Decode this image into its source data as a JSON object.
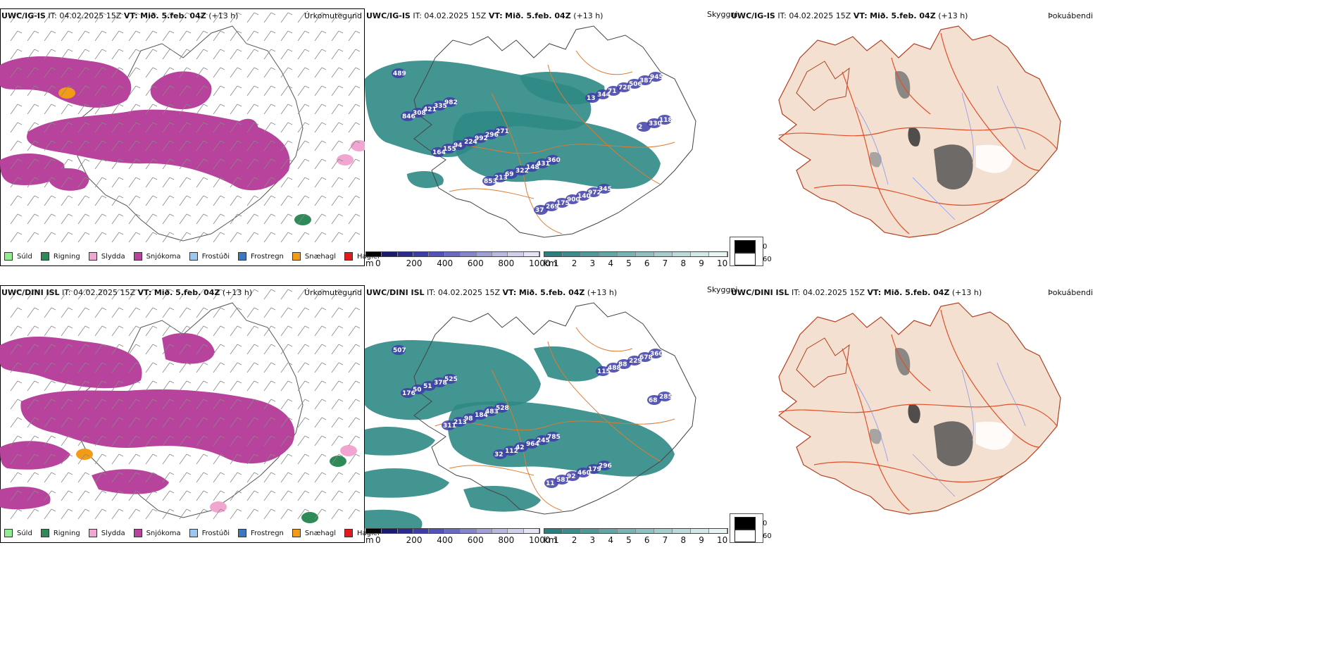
{
  "rows": [
    {
      "model": "UWC/IG-IS",
      "init": "IT: 04.02.2025 15Z",
      "vt_label": "VT:",
      "vt_value": "Mið. 5.feb. 04Z",
      "lead": "(+13 h)",
      "snow_labels": [
        "489",
        "982",
        "271",
        "360",
        "345",
        "945",
        "335",
        "296",
        "431",
        "972",
        "387",
        "421",
        "992",
        "148",
        "140",
        "506",
        "308",
        "224",
        "322",
        "900",
        "728",
        "846",
        "94",
        "69",
        "175",
        "71",
        "118",
        "155",
        "213",
        "269",
        "344",
        "330",
        "164",
        "853",
        "37",
        "13",
        "2"
      ]
    },
    {
      "model": "UWC/DINI ISL",
      "init": "IT: 04.02.2025 15Z",
      "vt_label": "VT:",
      "vt_value": "Mið. 5.feb. 04Z",
      "lead": "(+13 h)",
      "snow_labels": [
        "507",
        "525",
        "528",
        "785",
        "296",
        "360",
        "378",
        "483",
        "245",
        "179",
        "678",
        "51",
        "184",
        "964",
        "460",
        "229",
        "50",
        "98",
        "42",
        "92",
        "88",
        "176",
        "213",
        "112",
        "581",
        "488",
        "285",
        "311",
        "32",
        "11",
        "115",
        "68"
      ]
    }
  ],
  "panel_titles": {
    "precip_type": "Úrkomutegund",
    "visibility": "Skyggni",
    "fog": "Þokuábendi"
  },
  "precip_legend": [
    {
      "label": "Súld",
      "color": "#90ee90"
    },
    {
      "label": "Rigning",
      "color": "#2e8b57"
    },
    {
      "label": "Slydda",
      "color": "#f0a6d0"
    },
    {
      "label": "Snjókoma",
      "color": "#b8439d"
    },
    {
      "label": "Frostúði",
      "color": "#9cc7f0"
    },
    {
      "label": "Frostregn",
      "color": "#3a78c2"
    },
    {
      "label": "Snæhagl",
      "color": "#f29b16"
    },
    {
      "label": "Haglél",
      "color": "#e31a1c"
    }
  ],
  "snow_cbar": {
    "unit": "m",
    "ticks": [
      "0",
      "200",
      "400",
      "600",
      "800",
      "1000"
    ],
    "colors": [
      "#000000",
      "#1a1a6e",
      "#2b2b8f",
      "#3d3da8",
      "#5252b8",
      "#6a6ac2",
      "#8585cc",
      "#a0a0d6",
      "#b8b8e0",
      "#cfcfea",
      "#e4e4f4"
    ]
  },
  "vis_cbar": {
    "unit": "km",
    "ticks": [
      "1",
      "2",
      "3",
      "4",
      "5",
      "6",
      "7",
      "8",
      "9",
      "10"
    ],
    "colors": [
      "#2a7f7f",
      "#3b8c8c",
      "#4f9999",
      "#64a6a6",
      "#7ab3b3",
      "#90c0c0",
      "#a6cdcd",
      "#bcdada",
      "#d2e7e7",
      "#e8f3f3"
    ]
  },
  "fog_cbar": {
    "values": [
      "0",
      "60"
    ],
    "colors": [
      "#000000",
      "#ffffff"
    ]
  },
  "colors": {
    "snow": "#b8439d",
    "vis": "#2f8a86",
    "land": "#f3e0d0",
    "roads": "#e06030",
    "rivers": "#7a8cf0"
  }
}
